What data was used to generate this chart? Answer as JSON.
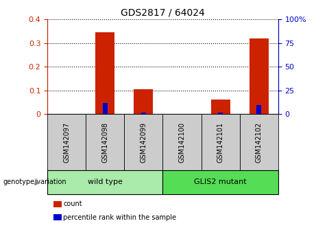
{
  "title": "GDS2817 / 64024",
  "samples": [
    "GSM142097",
    "GSM142098",
    "GSM142099",
    "GSM142100",
    "GSM142101",
    "GSM142102"
  ],
  "count_values": [
    0.0,
    0.345,
    0.105,
    0.0,
    0.062,
    0.32
  ],
  "percentile_values": [
    0.0,
    12.0,
    2.0,
    0.0,
    2.0,
    10.0
  ],
  "ylim_left": [
    0,
    0.4
  ],
  "ylim_right": [
    0,
    100
  ],
  "yticks_left": [
    0,
    0.1,
    0.2,
    0.3,
    0.4
  ],
  "yticks_right": [
    0,
    25,
    50,
    75,
    100
  ],
  "ytick_labels_left": [
    "0",
    "0.1",
    "0.2",
    "0.3",
    "0.4"
  ],
  "ytick_labels_right": [
    "0",
    "25",
    "50",
    "75",
    "100%"
  ],
  "left_axis_color": "#cc2200",
  "right_axis_color": "#0000cc",
  "bar_color_count": "#cc2200",
  "bar_color_percentile": "#0000cc",
  "groups": [
    {
      "label": "wild type",
      "indices": [
        0,
        1,
        2
      ],
      "color": "#aaeaaa"
    },
    {
      "label": "GLIS2 mutant",
      "indices": [
        3,
        4,
        5
      ],
      "color": "#55dd55"
    }
  ],
  "group_label_prefix": "genotype/variation",
  "legend_items": [
    {
      "label": "count",
      "color": "#cc2200"
    },
    {
      "label": "percentile rank within the sample",
      "color": "#0000cc"
    }
  ],
  "bg_color_xtick": "#cccccc",
  "bar_width": 0.5,
  "pct_bar_width": 0.12
}
